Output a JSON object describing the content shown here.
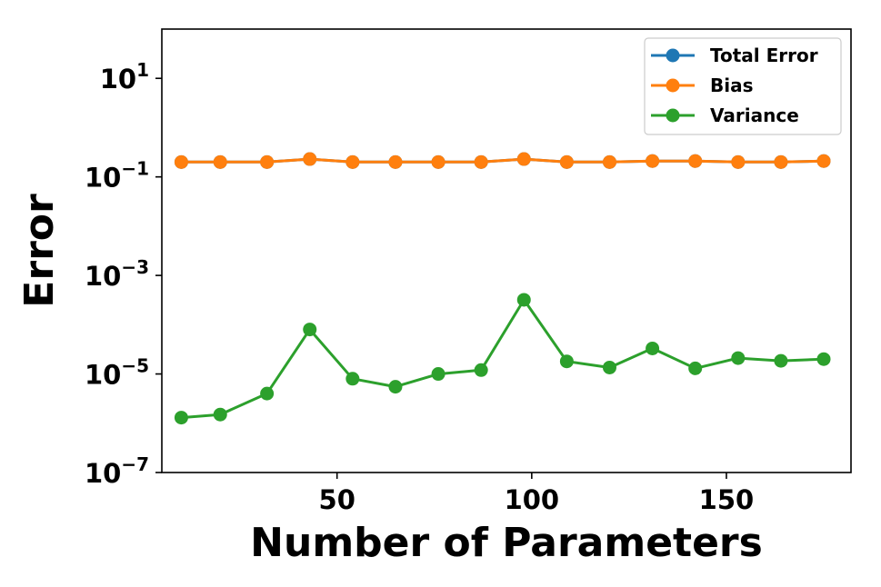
{
  "chart_data": {
    "type": "line",
    "xlabel": "Number of Parameters",
    "ylabel": "Error",
    "yscale": "log",
    "xlim": [
      5,
      182
    ],
    "ylim": [
      1e-07,
      100
    ],
    "xticks": [
      50,
      100,
      150
    ],
    "xtick_labels": [
      "50",
      "100",
      "150"
    ],
    "yticks": [
      1e-07,
      1e-05,
      0.001,
      0.1,
      10
    ],
    "ytick_labels": [
      {
        "base": "10",
        "exp": "−7"
      },
      {
        "base": "10",
        "exp": "−5"
      },
      {
        "base": "10",
        "exp": "−3"
      },
      {
        "base": "10",
        "exp": "−1"
      },
      {
        "base": "10",
        "exp": "1"
      }
    ],
    "grid": false,
    "legend_position": "top-right",
    "x": [
      10,
      20,
      32,
      43,
      54,
      65,
      76,
      87,
      98,
      109,
      120,
      131,
      142,
      153,
      164,
      175
    ],
    "series": [
      {
        "name": "Total Error",
        "color": "#1f77b4",
        "values": [
          0.2,
          0.2,
          0.2,
          0.23,
          0.2,
          0.2,
          0.2,
          0.2,
          0.23,
          0.2,
          0.2,
          0.21,
          0.21,
          0.2,
          0.2,
          0.21
        ]
      },
      {
        "name": "Bias",
        "color": "#ff7f0e",
        "values": [
          0.2,
          0.2,
          0.2,
          0.23,
          0.2,
          0.2,
          0.2,
          0.2,
          0.23,
          0.2,
          0.2,
          0.21,
          0.21,
          0.2,
          0.2,
          0.21
        ]
      },
      {
        "name": "Variance",
        "color": "#2ca02c",
        "values": [
          1.3e-06,
          1.5e-06,
          4e-06,
          8e-05,
          8e-06,
          5.5e-06,
          1e-05,
          1.2e-05,
          0.00032,
          1.8e-05,
          1.35e-05,
          3.3e-05,
          1.3e-05,
          2.1e-05,
          1.85e-05,
          2e-05
        ]
      }
    ]
  }
}
